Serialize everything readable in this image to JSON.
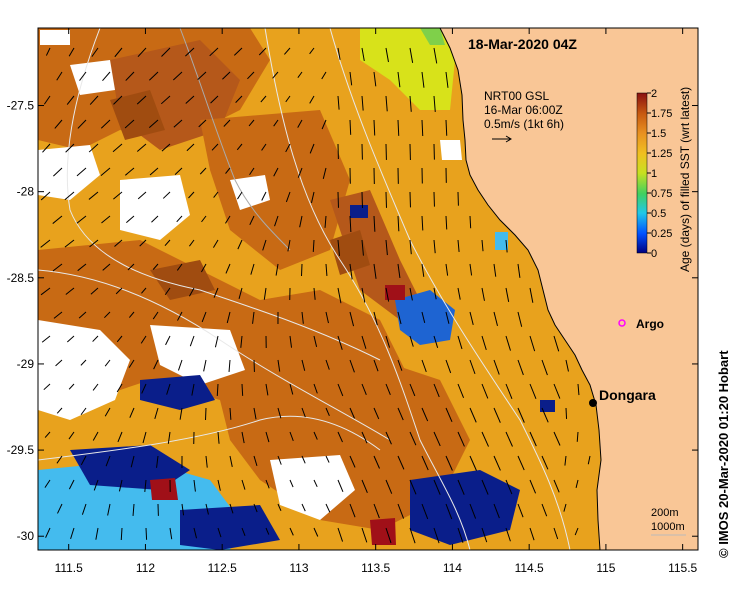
{
  "title": "18-Mar-2020 04Z",
  "credit": "© IMOS 20-Mar-2020 01:20 Hobart",
  "colors": {
    "land": "#f9c696",
    "ocean_base": "#e8a21d",
    "old_dark": "#c86a14",
    "old_darker": "#a04c10",
    "yellow": "#d8e21a",
    "cloud": "#ffffff",
    "blue_dark": "#0a1e8a",
    "blue_mid": "#1e64d2",
    "cyan": "#44bbee",
    "red": "#a01018"
  },
  "current_legend": {
    "line1": "NRT00 GSL",
    "line2": "16-Mar 06:00Z",
    "line3": "0.5m/s (1kt 6h)"
  },
  "colorbar": {
    "label": "Age (days) of filled SST (wrt latest)",
    "ticks": [
      "2",
      "1.75",
      "1.5",
      "1.25",
      "1",
      "0.75",
      "0.5",
      "0.25",
      "0"
    ],
    "stops": [
      "#00007f",
      "#0050ff",
      "#20c8e8",
      "#40d060",
      "#c8e020",
      "#f0c020",
      "#e89020",
      "#c85a10",
      "#8a1010"
    ]
  },
  "depth_legend": {
    "line1": "200m",
    "line2": "1000m"
  },
  "places": [
    {
      "name": "Dongara",
      "lon": 114.92,
      "lat": -29.25
    },
    {
      "name": "Argo",
      "lon": 115.12,
      "lat": -28.83
    }
  ],
  "axes": {
    "x_ticks": [
      111.5,
      112,
      112.5,
      113,
      113.5,
      114,
      114.5,
      115,
      115.5
    ],
    "y_ticks": [
      -27.5,
      -28,
      -28.5,
      -29,
      -29.5,
      -30
    ],
    "x_labels": [
      "111.5",
      "112",
      "112.5",
      "113",
      "113.5",
      "114",
      "114.5",
      "115",
      "115.5"
    ],
    "y_labels": [
      "-27.5",
      "-28",
      "-28.5",
      "-29",
      "-29.5",
      "-30"
    ],
    "lon_range": [
      111.3,
      115.6
    ],
    "lat_range": [
      -30.08,
      -27.05
    ]
  }
}
